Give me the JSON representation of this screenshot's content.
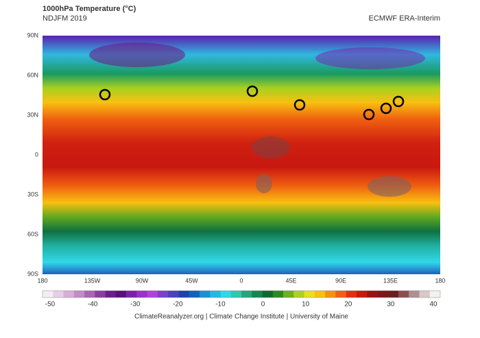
{
  "header": {
    "title": "1000hPa Temperature (°C)",
    "subtitle": "NDJFM 2019",
    "source": "ECMWF ERA-Interim"
  },
  "map": {
    "lat_labels": [
      "90N",
      "60N",
      "30N",
      "0",
      "30S",
      "60S",
      "90S"
    ],
    "lon_labels": [
      "180",
      "135W",
      "90W",
      "45W",
      "0",
      "45E",
      "90E",
      "135E",
      "180"
    ]
  },
  "colorbar": {
    "ticks": [
      -50,
      -40,
      -30,
      -20,
      -10,
      0,
      10,
      20,
      30,
      40
    ],
    "colors": [
      "#f4eef4",
      "#e6cfe6",
      "#d6aed8",
      "#c28cc8",
      "#a866b4",
      "#8a3fa0",
      "#6a1f8a",
      "#5a1078",
      "#7a20b0",
      "#9a30d0",
      "#b040e0",
      "#7a40d0",
      "#4a40c0",
      "#2040b0",
      "#1060c0",
      "#1890d8",
      "#20b8e8",
      "#30d8e8",
      "#30c8b0",
      "#20a878",
      "#108850",
      "#0c6a30",
      "#2a8a20",
      "#70b020",
      "#b0d020",
      "#e8e020",
      "#f8c010",
      "#f89010",
      "#f06010",
      "#e03010",
      "#c81810",
      "#a01010",
      "#801818",
      "#6a2020",
      "#8a5050",
      "#b09090",
      "#d8c8c8",
      "#f4f0f0"
    ]
  },
  "footer": "ClimateReanalyzer.org | Climate Change Institute | University of Maine"
}
